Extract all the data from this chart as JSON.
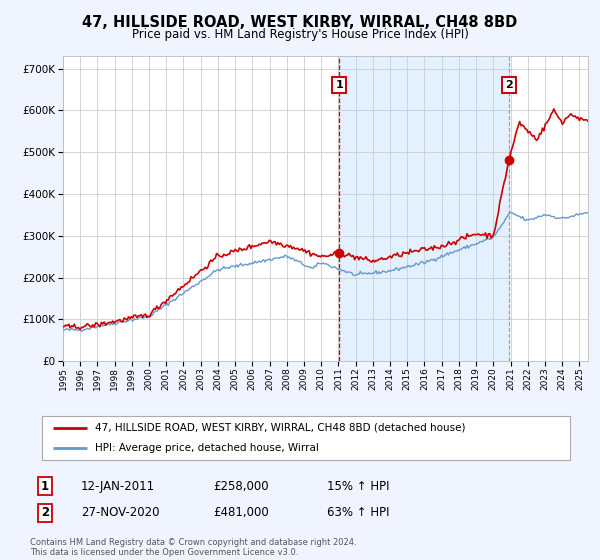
{
  "title": "47, HILLSIDE ROAD, WEST KIRBY, WIRRAL, CH48 8BD",
  "subtitle": "Price paid vs. HM Land Registry's House Price Index (HPI)",
  "background_color": "#f0f4ff",
  "plot_bg_color": "#ffffff",
  "grid_color": "#cccccc",
  "hpi_color": "#6699cc",
  "price_color": "#cc0000",
  "sale1_date": 2011.04,
  "sale1_price": 258000,
  "sale2_date": 2020.92,
  "sale2_price": 481000,
  "ylim_max": 730000,
  "xlim_min": 1995,
  "xlim_max": 2025.5,
  "legend_line1": "47, HILLSIDE ROAD, WEST KIRBY, WIRRAL, CH48 8BD (detached house)",
  "legend_line2": "HPI: Average price, detached house, Wirral",
  "table_row1": [
    "1",
    "12-JAN-2011",
    "£258,000",
    "15% ↑ HPI"
  ],
  "table_row2": [
    "2",
    "27-NOV-2020",
    "£481,000",
    "63% ↑ HPI"
  ],
  "footnote": "Contains HM Land Registry data © Crown copyright and database right 2024.\nThis data is licensed under the Open Government Licence v3.0."
}
